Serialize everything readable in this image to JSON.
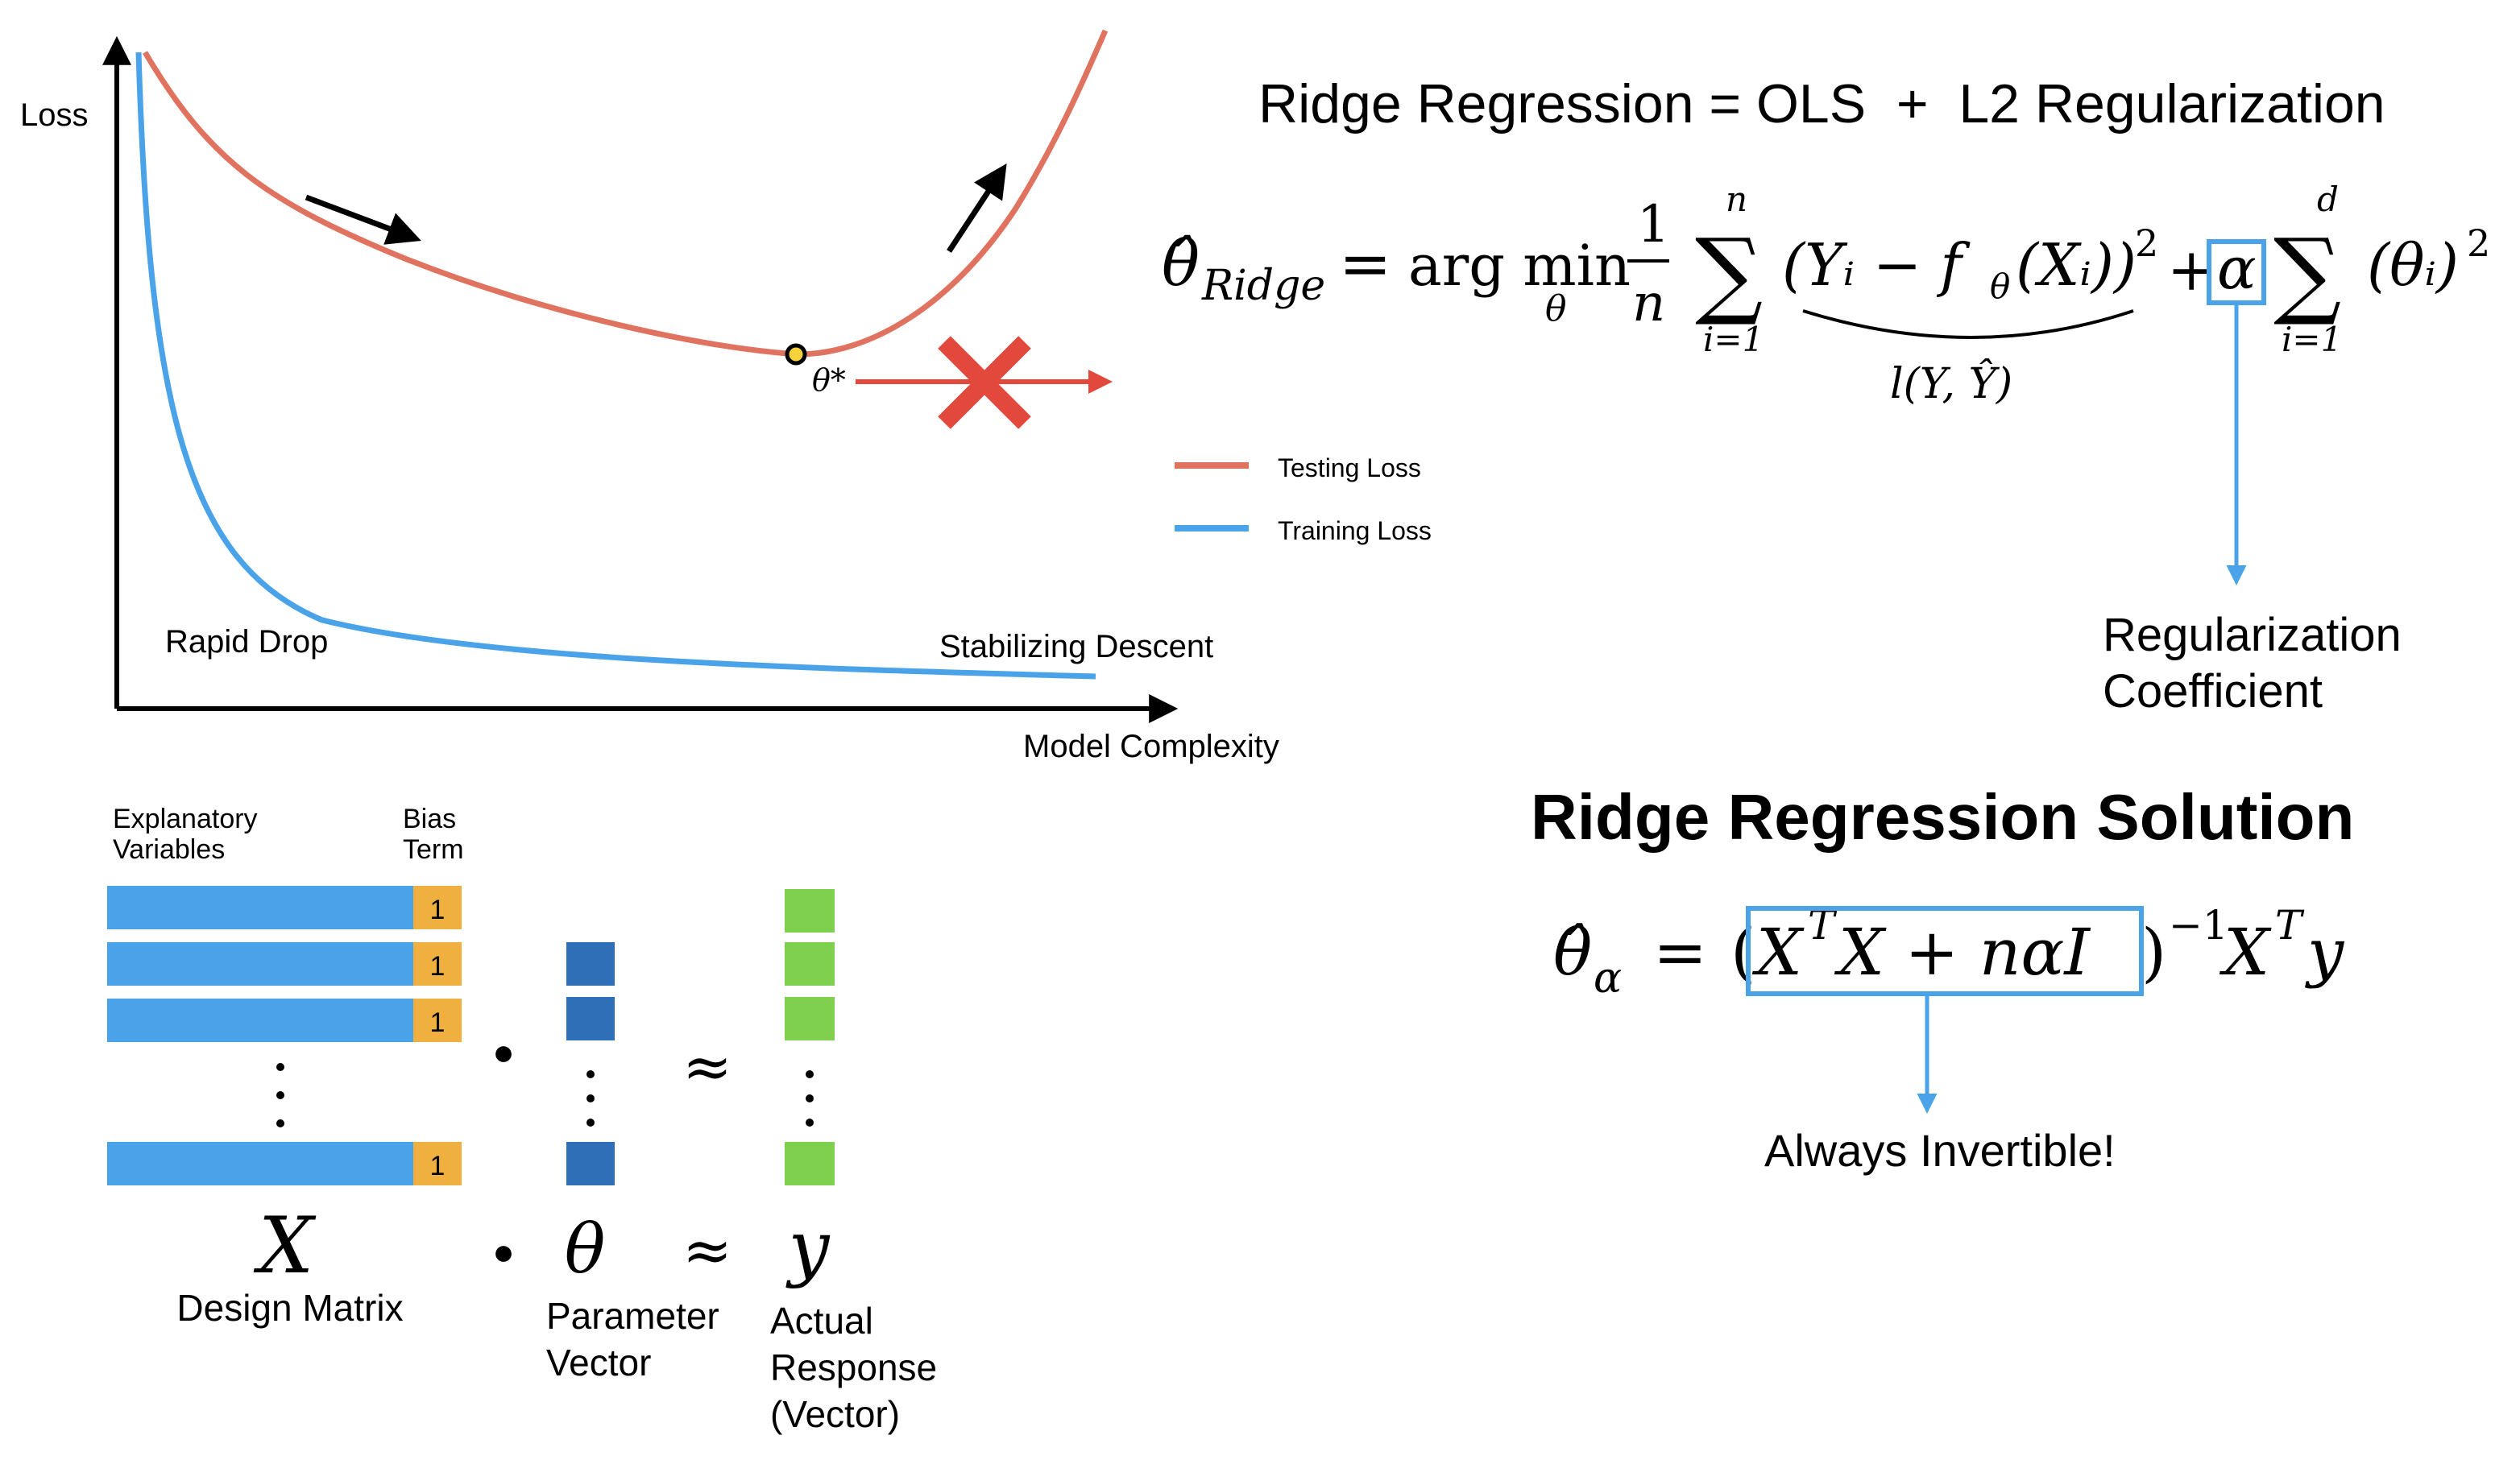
{
  "chart_data": {
    "type": "line",
    "xlabel": "Model Complexity",
    "ylabel": "Loss",
    "series": [
      {
        "name": "Testing Loss",
        "color": "#e07360"
      },
      {
        "name": "Training Loss",
        "color": "#4aa3e8"
      }
    ],
    "annotations": {
      "rapid_drop": "Rapid Drop",
      "stabilizing": "Stabilizing Descent",
      "optimum": "θ*"
    }
  },
  "ridge": {
    "title": "Ridge Regression = OLS  +  L2 Regularization",
    "reg_coef_line1": "Regularization",
    "reg_coef_line2": "Coefficient",
    "solution_title": "Ridge Regression Solution",
    "invertible": "Always Invertible!"
  },
  "matrix": {
    "explanatory_line1": "Explanatory",
    "explanatory_line2": "Variables",
    "bias_line1": "Bias",
    "bias_line2": "Term",
    "bias_value": "1",
    "x_symbol": "X",
    "x_caption": "Design Matrix",
    "theta_symbol": "θ",
    "theta_caption_line1": "Parameter",
    "theta_caption_line2": "Vector",
    "y_symbol": "y",
    "y_caption_line1": "Actual",
    "y_caption_line2": "Response",
    "y_caption_line3": "(Vector)",
    "dot": "●",
    "approx": "≈",
    "colors": {
      "bar": "#4aa3e8",
      "bias": "#f0b03f",
      "theta": "#2f6fb7",
      "y": "#7fd04f"
    }
  }
}
